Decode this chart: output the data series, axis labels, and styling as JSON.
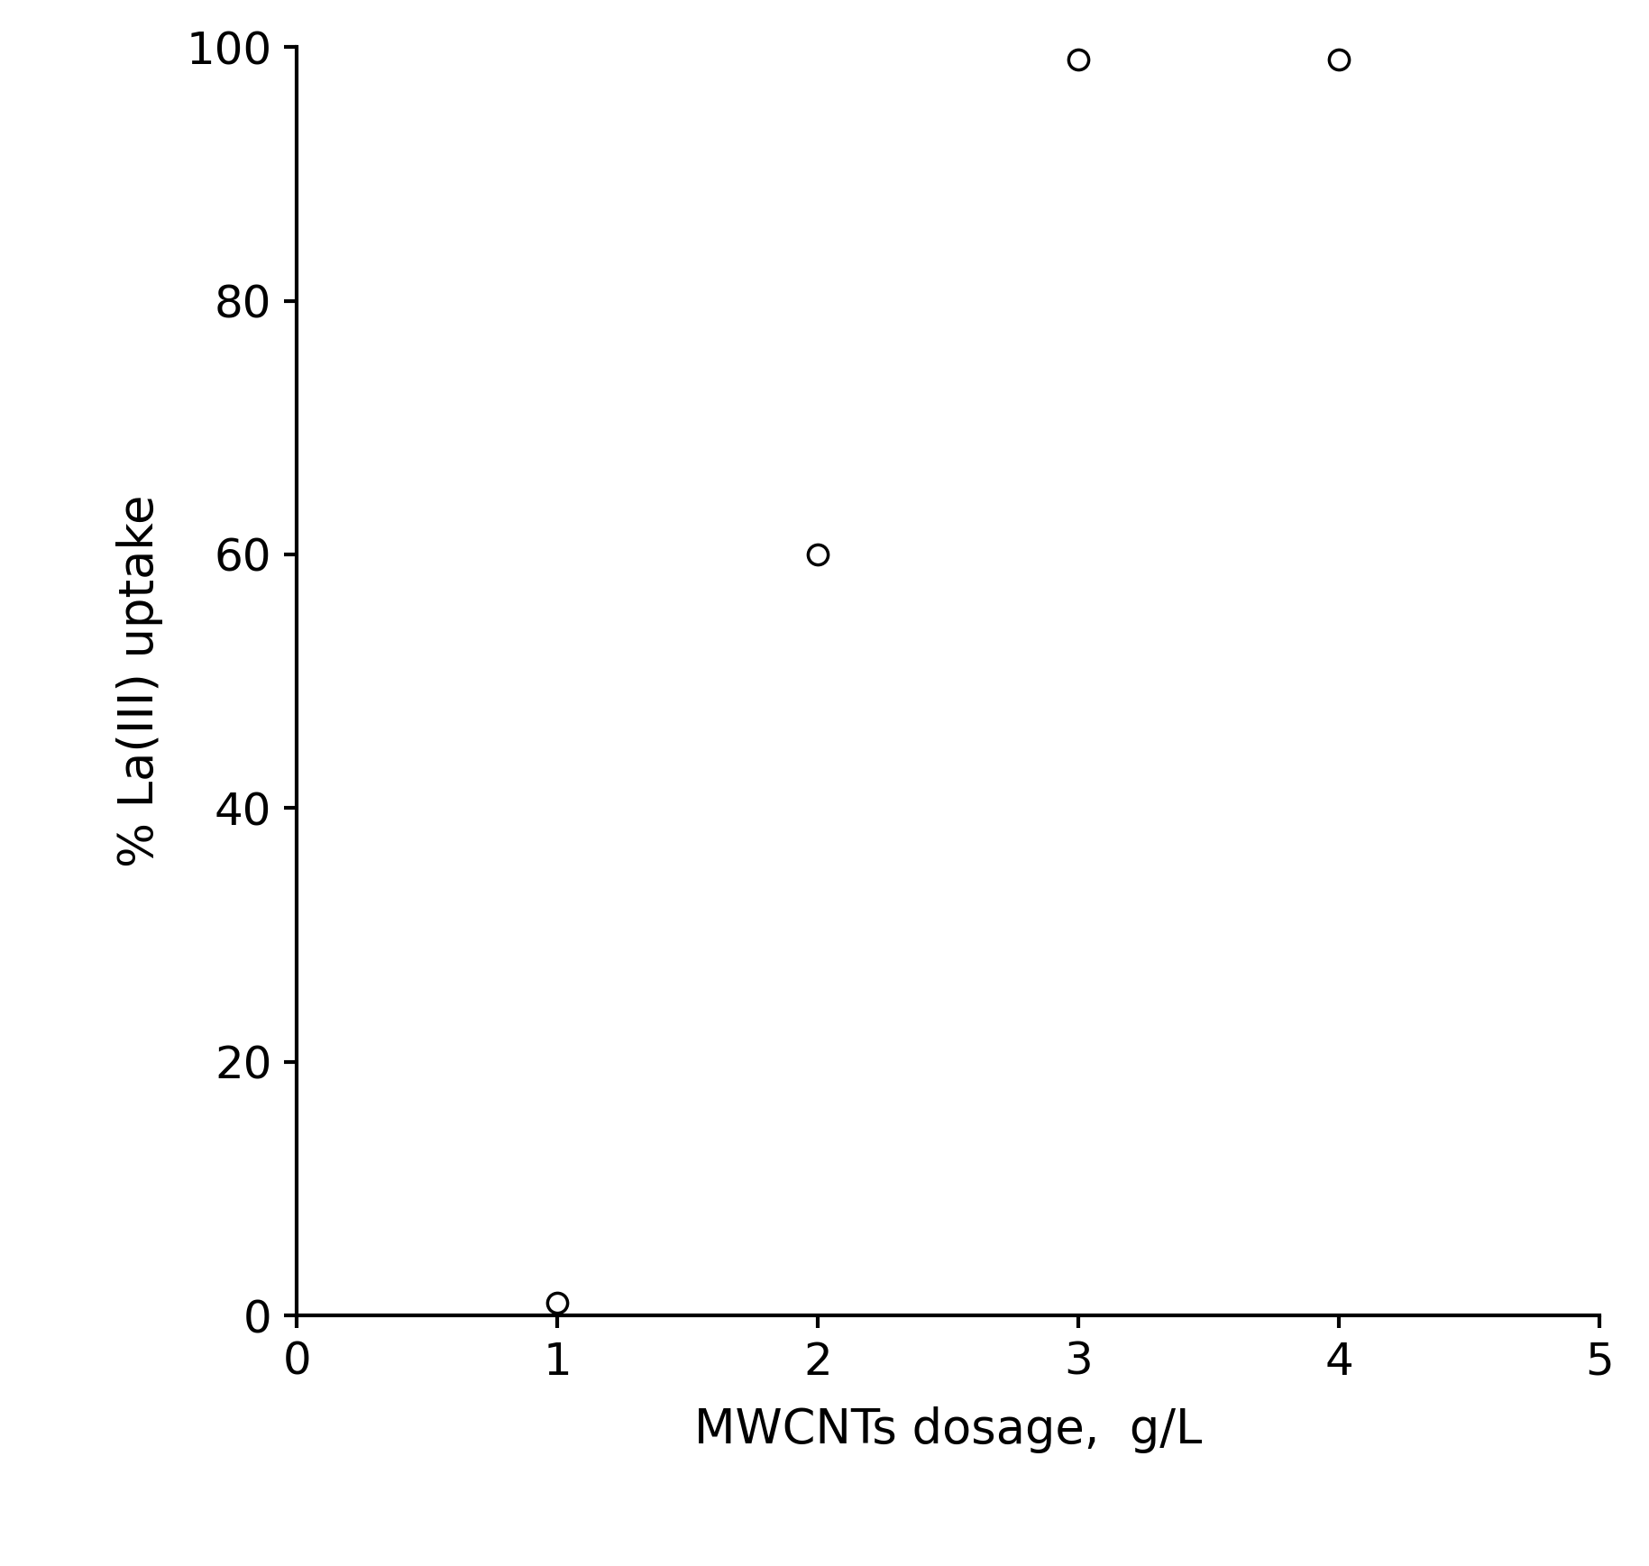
{
  "x_values": [
    1,
    2,
    3,
    4
  ],
  "y_values": [
    1.0,
    60.0,
    99.0,
    99.0
  ],
  "xlabel": "MWCNTs dosage,  g/L",
  "ylabel": "% La(III) uptake",
  "xlim": [
    0,
    5
  ],
  "ylim": [
    0,
    100
  ],
  "xticks": [
    0,
    1,
    2,
    3,
    4,
    5
  ],
  "yticks": [
    0,
    20,
    40,
    60,
    80,
    100
  ],
  "marker": "o",
  "marker_size": 16,
  "marker_facecolor": "white",
  "marker_edgecolor": "black",
  "marker_edgewidth": 2.5,
  "line_style": "none",
  "axis_linewidth": 3.0,
  "tick_labelsize": 36,
  "xlabel_fontsize": 38,
  "ylabel_fontsize": 38,
  "background_color": "white",
  "fig_width": 18.29,
  "fig_height": 17.37,
  "dpi": 100
}
